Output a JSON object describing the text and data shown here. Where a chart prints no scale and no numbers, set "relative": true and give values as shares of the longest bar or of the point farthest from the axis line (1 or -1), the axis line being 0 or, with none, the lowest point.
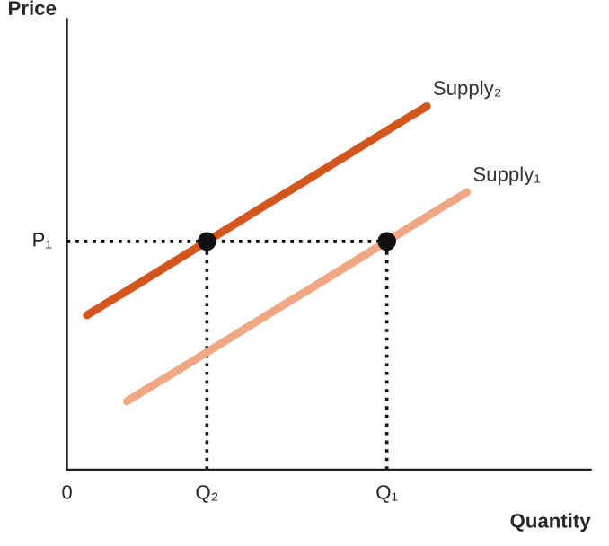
{
  "chart_data": {
    "type": "line",
    "relative": true,
    "xlabel": "Quantity",
    "ylabel": "Price",
    "categories": [
      "0",
      null,
      null,
      null,
      null,
      null,
      null,
      "Q₂",
      null,
      null,
      null,
      null,
      null,
      null,
      null,
      null,
      "Q₁",
      null,
      null,
      null,
      null,
      null,
      null,
      null,
      null,
      null,
      null
    ],
    "annotations": [
      "P₁"
    ],
    "tick_labels": "x",
    "legend": false,
    "series": [
      {
        "name": "Supply₂",
        "color": "#d4561f",
        "values": [
          null,
          0.425,
          0.459,
          0.492,
          0.526,
          0.56,
          0.594,
          0.628,
          0.662,
          0.696,
          0.73,
          0.763,
          0.797,
          0.831,
          0.865,
          0.899,
          0.933,
          0.967,
          1,
          null,
          null,
          null,
          null,
          null,
          null,
          null,
          null
        ]
      },
      {
        "name": "Supply₁",
        "color": "#f0a884",
        "values": [
          null,
          null,
          null,
          0.188,
          0.222,
          0.255,
          0.289,
          0.323,
          0.357,
          0.391,
          0.425,
          0.459,
          0.492,
          0.526,
          0.56,
          0.594,
          0.628,
          0.662,
          0.696,
          0.73,
          0.763,
          null,
          null,
          null,
          null,
          null,
          null
        ]
      },
      {
        "color": "#000000",
        "line_style": "dotted",
        "values": [
          0.628,
          0.628,
          0.628,
          0.628,
          0.628,
          0.628,
          0.628,
          0.628,
          0.628,
          0.628,
          0.628,
          0.628,
          0.628,
          0.628,
          0.628,
          0.628,
          0.628,
          null,
          null,
          null,
          null,
          null,
          null,
          null,
          null,
          null,
          null
        ]
      },
      {
        "type": "lollipop",
        "color": "#111111",
        "marker": "circle",
        "line_style": "dotted",
        "values": [
          null,
          null,
          null,
          null,
          null,
          null,
          null,
          0.628,
          null,
          null,
          null,
          null,
          null,
          null,
          null,
          null,
          0.628,
          null,
          null,
          null,
          null,
          null,
          null,
          null,
          null,
          null,
          null
        ]
      }
    ]
  }
}
